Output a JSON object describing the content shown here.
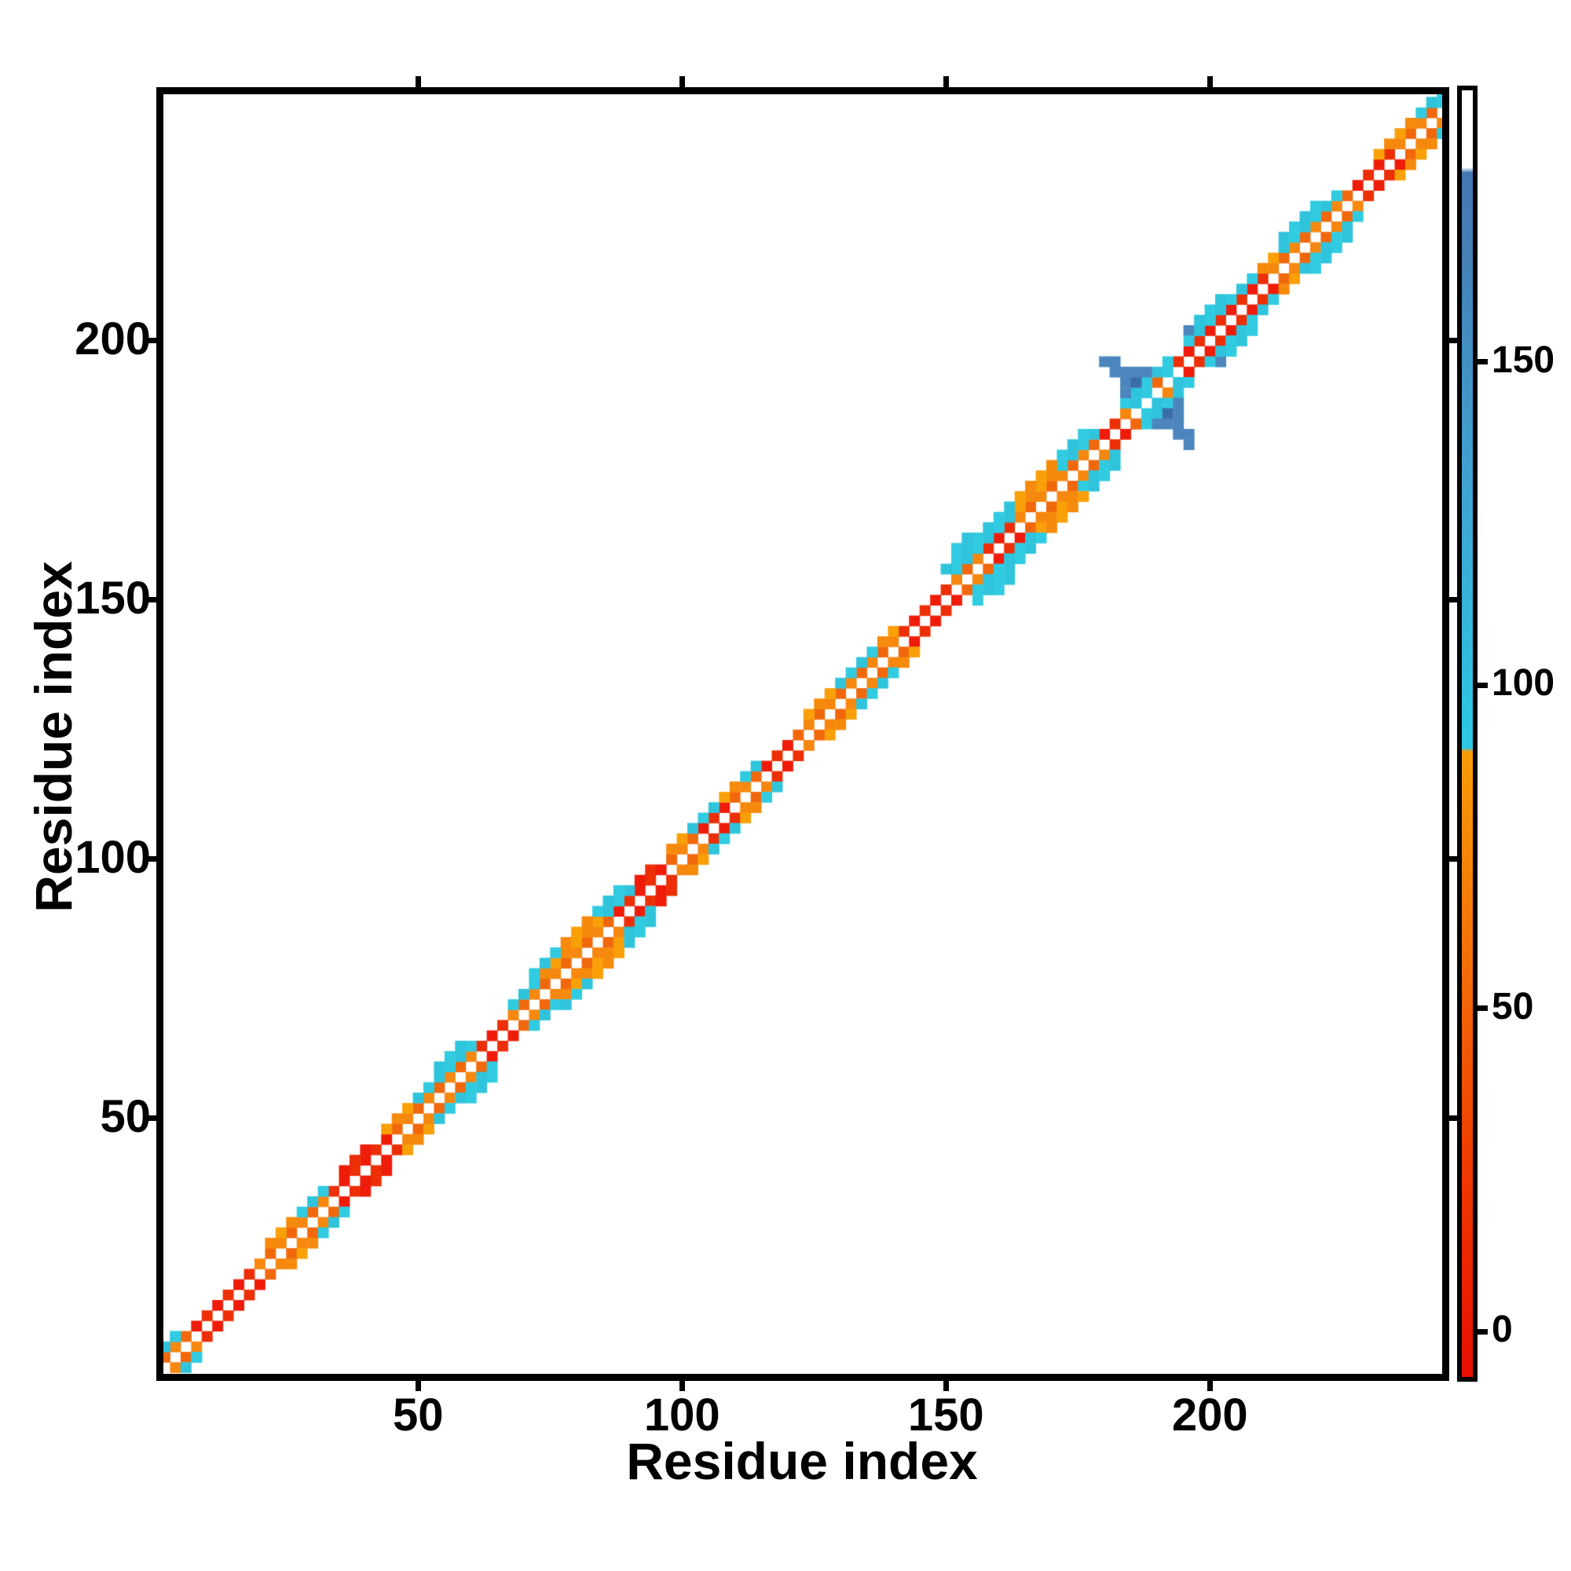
{
  "figure": {
    "background": "#ffffff"
  },
  "chart_data": {
    "type": "heatmap",
    "title": "",
    "xlabel": "Residue index",
    "ylabel": "Residue index",
    "xlim": [
      1.0,
      244.6
    ],
    "ylim": [
      0.0,
      248.3
    ],
    "x_ticks": [
      50,
      100,
      150,
      200
    ],
    "y_ticks": [
      50,
      100,
      150,
      200
    ],
    "ticks_on_all_sides": true,
    "grid": false,
    "cell_size_residues": 2,
    "symmetric": true,
    "palette": {
      "R": [
        "#ee1c09",
        "#ec2f06"
      ],
      "O": [
        "#f6870f",
        "#f1680c"
      ],
      "O2": [
        "#f9a009",
        "#f68a0c"
      ],
      "C": [
        "#30cbe1",
        "#2fc4dc"
      ],
      "B": [
        "#4d86bd",
        "#4d86bd"
      ],
      "b": [
        "#3b6dab",
        "#3b6dab"
      ]
    },
    "diagonal_runs": [
      [
        2,
        6,
        2,
        "O"
      ],
      [
        8,
        18,
        2,
        "R"
      ],
      [
        20,
        32,
        2,
        "O"
      ],
      [
        34,
        44,
        2,
        "R"
      ],
      [
        46,
        60,
        2,
        "O"
      ],
      [
        62,
        66,
        2,
        "R"
      ],
      [
        68,
        86,
        2,
        "O"
      ],
      [
        88,
        96,
        2,
        "R"
      ],
      [
        98,
        102,
        2,
        "O"
      ],
      [
        104,
        108,
        2,
        "R"
      ],
      [
        110,
        114,
        2,
        "O"
      ],
      [
        116,
        120,
        2,
        "R"
      ],
      [
        122,
        140,
        2,
        "O"
      ],
      [
        142,
        150,
        2,
        "R"
      ],
      [
        152,
        156,
        2,
        "O"
      ],
      [
        158,
        162,
        2,
        "R"
      ],
      [
        164,
        178,
        2,
        "O"
      ],
      [
        180,
        184,
        2,
        "R"
      ],
      [
        194,
        210,
        2,
        "R"
      ],
      [
        212,
        226,
        2,
        "O"
      ],
      [
        228,
        234,
        2,
        "R"
      ],
      [
        236,
        244,
        2,
        "O"
      ],
      [
        2,
        4,
        4,
        "C"
      ],
      [
        22,
        26,
        4,
        "O2"
      ],
      [
        28,
        32,
        4,
        "C"
      ],
      [
        36,
        40,
        4,
        "R"
      ],
      [
        44,
        48,
        4,
        "O2"
      ],
      [
        50,
        60,
        4,
        "C"
      ],
      [
        68,
        72,
        4,
        "C"
      ],
      [
        74,
        84,
        4,
        "O2"
      ],
      [
        86,
        90,
        4,
        "C"
      ],
      [
        92,
        94,
        4,
        "R"
      ],
      [
        98,
        100,
        4,
        "O2"
      ],
      [
        102,
        106,
        4,
        "C"
      ],
      [
        108,
        110,
        4,
        "O2"
      ],
      [
        112,
        114,
        4,
        "C"
      ],
      [
        124,
        128,
        4,
        "O2"
      ],
      [
        130,
        136,
        4,
        "C"
      ],
      [
        138,
        140,
        4,
        "O2"
      ],
      [
        152,
        162,
        4,
        "C"
      ],
      [
        164,
        170,
        4,
        "O2"
      ],
      [
        172,
        178,
        4,
        "C"
      ],
      [
        198,
        208,
        4,
        "C"
      ],
      [
        210,
        212,
        4,
        "O2"
      ],
      [
        214,
        224,
        4,
        "C"
      ],
      [
        232,
        238,
        4,
        "O2"
      ],
      [
        240,
        244,
        4,
        "C"
      ],
      [
        54,
        58,
        6,
        "C"
      ],
      [
        72,
        76,
        6,
        "C"
      ],
      [
        78,
        82,
        6,
        "O2"
      ],
      [
        84,
        88,
        6,
        "C"
      ],
      [
        150,
        156,
        6,
        "C"
      ],
      [
        158,
        162,
        6,
        "C"
      ],
      [
        164,
        170,
        6,
        "O2"
      ],
      [
        172,
        176,
        6,
        "C"
      ],
      [
        196,
        202,
        6,
        "C"
      ],
      [
        214,
        220,
        6,
        "C"
      ],
      [
        152,
        154,
        8,
        "C"
      ]
    ],
    "extra_cells": [
      [
        4,
        8,
        "C"
      ],
      [
        184,
        186,
        "O"
      ],
      [
        190,
        192,
        "O"
      ],
      [
        184,
        188,
        "C"
      ],
      [
        186,
        188,
        "C"
      ],
      [
        186,
        190,
        "C"
      ],
      [
        188,
        190,
        "C"
      ],
      [
        188,
        192,
        "C"
      ],
      [
        190,
        194,
        "C"
      ],
      [
        192,
        194,
        "C"
      ],
      [
        192,
        196,
        "C"
      ],
      [
        184,
        190,
        "B"
      ],
      [
        184,
        192,
        "B"
      ],
      [
        186,
        192,
        "b"
      ],
      [
        186,
        194,
        "B"
      ],
      [
        188,
        194,
        "B"
      ],
      [
        180,
        196,
        "B"
      ],
      [
        182,
        196,
        "B"
      ],
      [
        182,
        194,
        "B"
      ],
      [
        184,
        194,
        "B"
      ],
      [
        196,
        202,
        "B"
      ],
      [
        196,
        200,
        "C"
      ],
      [
        198,
        202,
        "C"
      ],
      [
        200,
        204,
        "C"
      ],
      [
        242,
        246,
        "C"
      ],
      [
        244,
        246,
        "C"
      ]
    ],
    "colorbar": {
      "tick_labels": [
        "0",
        "50",
        "100",
        "150"
      ],
      "tick_values": [
        0,
        50,
        100,
        150
      ],
      "value_range": [
        -7,
        192
      ],
      "gradient_stops": [
        [
          0.0,
          "#e70e02"
        ],
        [
          0.16,
          "#ee3a00"
        ],
        [
          0.34,
          "#f4740a"
        ],
        [
          0.486,
          "#f89c07"
        ],
        [
          0.489,
          "#2cc8e5"
        ],
        [
          0.69,
          "#3fa3d2"
        ],
        [
          0.88,
          "#457fb4"
        ],
        [
          0.936,
          "#4377b2"
        ],
        [
          0.94,
          "#ffffff"
        ],
        [
          1.0,
          "#ffffff"
        ]
      ]
    },
    "x_tick_labels": [
      "50",
      "100",
      "150",
      "200"
    ],
    "y_tick_labels": [
      "50",
      "100",
      "150",
      "200"
    ]
  }
}
